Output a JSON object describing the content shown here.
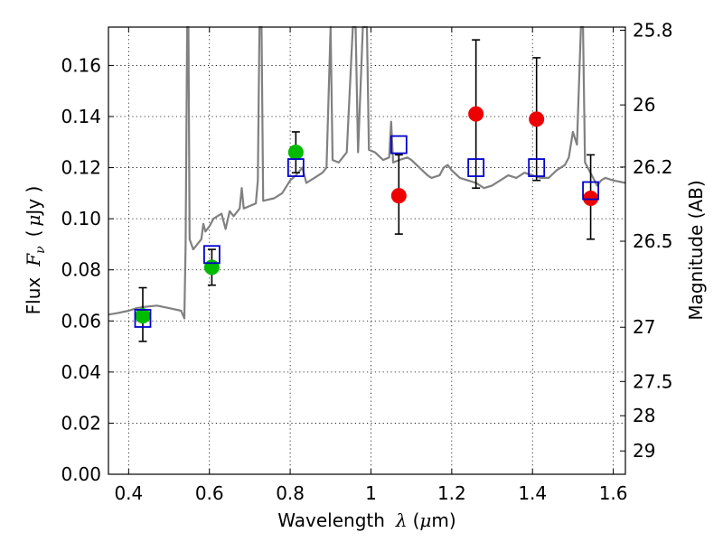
{
  "chart_data": {
    "type": "scatter",
    "title": "",
    "xlabel": {
      "prefix": "Wavelength",
      "symbol": "λ",
      "unit_open": "(",
      "unit_mu": "μ",
      "unit_rest": "m)"
    },
    "ylabel": {
      "prefix": "Flux",
      "symbol": "F",
      "subscript": "ν",
      "unit_open": "(",
      "unit_mu": "μ",
      "unit_rest": "Jy )"
    },
    "y2label": "Magnitude (AB)",
    "xlim": [
      0.35,
      1.63
    ],
    "ylim": [
      0.0,
      0.175
    ],
    "xticks": [
      0.4,
      0.6,
      0.8,
      1.0,
      1.2,
      1.4,
      1.6
    ],
    "xtick_labels": [
      "0.4",
      "0.6",
      "0.8",
      "1",
      "1.2",
      "1.4",
      "1.6"
    ],
    "yticks": [
      0.0,
      0.02,
      0.04,
      0.06,
      0.08,
      0.1,
      0.12,
      0.14,
      0.16
    ],
    "ytick_labels": [
      "0.00",
      "0.02",
      "0.04",
      "0.06",
      "0.08",
      "0.10",
      "0.12",
      "0.14",
      "0.16"
    ],
    "y2ticks": [
      25.8,
      26,
      26.2,
      26.5,
      27,
      27.5,
      28,
      29
    ],
    "y2tick_labels": [
      "25.8",
      "26",
      "26.2",
      "26.5",
      "27",
      "27.5",
      "28",
      "29"
    ],
    "grid": true,
    "colors": {
      "model": "#808080",
      "green": "#00bb00",
      "red": "#ee0000",
      "square": "#0000cc",
      "error": "#000000"
    },
    "series": [
      {
        "marker": "circle",
        "color": "#00bb00",
        "points": [
          {
            "x": 0.435,
            "y": 0.062,
            "lo": 0.052,
            "hi": 0.073
          },
          {
            "x": 0.606,
            "y": 0.081,
            "lo": 0.074,
            "hi": 0.088
          },
          {
            "x": 0.814,
            "y": 0.126,
            "lo": 0.118,
            "hi": 0.134
          }
        ]
      },
      {
        "marker": "circle",
        "color": "#ee0000",
        "points": [
          {
            "x": 1.069,
            "y": 0.109,
            "lo": 0.094,
            "hi": 0.125
          },
          {
            "x": 1.26,
            "y": 0.141,
            "lo": 0.112,
            "hi": 0.17
          },
          {
            "x": 1.41,
            "y": 0.139,
            "lo": 0.115,
            "hi": 0.163
          },
          {
            "x": 1.544,
            "y": 0.108,
            "lo": 0.092,
            "hi": 0.125
          }
        ]
      },
      {
        "marker": "square",
        "color": "#0000cc",
        "points": [
          {
            "x": 0.435,
            "y": 0.061
          },
          {
            "x": 0.606,
            "y": 0.086
          },
          {
            "x": 0.814,
            "y": 0.12
          },
          {
            "x": 1.069,
            "y": 0.129
          },
          {
            "x": 1.26,
            "y": 0.12
          },
          {
            "x": 1.41,
            "y": 0.12
          },
          {
            "x": 1.544,
            "y": 0.111
          }
        ]
      }
    ],
    "model_spectrum": {
      "color": "#808080",
      "points": [
        [
          0.35,
          0.0625
        ],
        [
          0.37,
          0.063
        ],
        [
          0.4,
          0.064
        ],
        [
          0.42,
          0.065
        ],
        [
          0.44,
          0.0655
        ],
        [
          0.47,
          0.066
        ],
        [
          0.5,
          0.065
        ],
        [
          0.53,
          0.064
        ],
        [
          0.538,
          0.061
        ],
        [
          0.541,
          0.09
        ],
        [
          0.545,
          0.175
        ],
        [
          0.548,
          0.175
        ],
        [
          0.551,
          0.092
        ],
        [
          0.56,
          0.088
        ],
        [
          0.58,
          0.092
        ],
        [
          0.585,
          0.098
        ],
        [
          0.59,
          0.095
        ],
        [
          0.6,
          0.097
        ],
        [
          0.61,
          0.1
        ],
        [
          0.63,
          0.102
        ],
        [
          0.64,
          0.096
        ],
        [
          0.65,
          0.103
        ],
        [
          0.66,
          0.101
        ],
        [
          0.675,
          0.104
        ],
        [
          0.68,
          0.112
        ],
        [
          0.685,
          0.104
        ],
        [
          0.7,
          0.105
        ],
        [
          0.715,
          0.106
        ],
        [
          0.72,
          0.115
        ],
        [
          0.724,
          0.175
        ],
        [
          0.729,
          0.175
        ],
        [
          0.733,
          0.107
        ],
        [
          0.76,
          0.108
        ],
        [
          0.78,
          0.11
        ],
        [
          0.8,
          0.115
        ],
        [
          0.814,
          0.117
        ],
        [
          0.83,
          0.12
        ],
        [
          0.84,
          0.114
        ],
        [
          0.86,
          0.116
        ],
        [
          0.88,
          0.118
        ],
        [
          0.89,
          0.12
        ],
        [
          0.9,
          0.175
        ],
        [
          0.905,
          0.123
        ],
        [
          0.92,
          0.122
        ],
        [
          0.94,
          0.126
        ],
        [
          0.955,
          0.175
        ],
        [
          0.962,
          0.175
        ],
        [
          0.968,
          0.126
        ],
        [
          0.98,
          0.175
        ],
        [
          0.99,
          0.175
        ],
        [
          0.995,
          0.127
        ],
        [
          1.01,
          0.126
        ],
        [
          1.03,
          0.123
        ],
        [
          1.045,
          0.124
        ],
        [
          1.05,
          0.138
        ],
        [
          1.055,
          0.122
        ],
        [
          1.07,
          0.123
        ],
        [
          1.09,
          0.124
        ],
        [
          1.1,
          0.123
        ],
        [
          1.12,
          0.12
        ],
        [
          1.14,
          0.117
        ],
        [
          1.15,
          0.116
        ],
        [
          1.17,
          0.117
        ],
        [
          1.18,
          0.12
        ],
        [
          1.19,
          0.121
        ],
        [
          1.2,
          0.119
        ],
        [
          1.22,
          0.116
        ],
        [
          1.24,
          0.115
        ],
        [
          1.26,
          0.114
        ],
        [
          1.28,
          0.112
        ],
        [
          1.3,
          0.113
        ],
        [
          1.32,
          0.115
        ],
        [
          1.34,
          0.117
        ],
        [
          1.36,
          0.116
        ],
        [
          1.38,
          0.118
        ],
        [
          1.4,
          0.117
        ],
        [
          1.42,
          0.116
        ],
        [
          1.44,
          0.116
        ],
        [
          1.46,
          0.119
        ],
        [
          1.48,
          0.121
        ],
        [
          1.49,
          0.124
        ],
        [
          1.5,
          0.134
        ],
        [
          1.51,
          0.129
        ],
        [
          1.52,
          0.175
        ],
        [
          1.525,
          0.175
        ],
        [
          1.53,
          0.122
        ],
        [
          1.55,
          0.116
        ],
        [
          1.56,
          0.113
        ],
        [
          1.57,
          0.115
        ],
        [
          1.58,
          0.116
        ],
        [
          1.6,
          0.115
        ],
        [
          1.63,
          0.114
        ]
      ]
    }
  }
}
